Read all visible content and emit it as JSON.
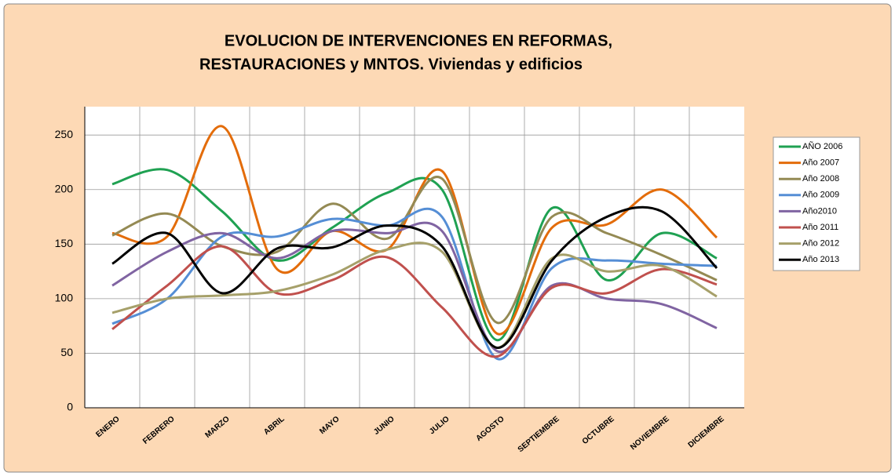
{
  "chart_data": {
    "type": "line",
    "title": [
      "EVOLUCION DE INTERVENCIONES EN REFORMAS,",
      "RESTAURACIONES y MNTOS. Viviendas y edificios"
    ],
    "categories": [
      "ENERO",
      "FEBRERO",
      "MARZO",
      "ABRIL",
      "MAYO",
      "JUNIO",
      "JULIO",
      "AGOSTO",
      "SEPTIEMBRE",
      "OCTUBRE",
      "NOVIEMBRE",
      "DICIEMBRE"
    ],
    "series": [
      {
        "name": "AÑO 2006",
        "color": "#1fa152",
        "values": [
          205,
          218,
          180,
          135,
          165,
          197,
          200,
          62,
          183,
          117,
          160,
          137
        ]
      },
      {
        "name": "Año 2007",
        "color": "#e36c0a",
        "values": [
          160,
          157,
          258,
          127,
          162,
          145,
          217,
          68,
          165,
          168,
          200,
          156
        ]
      },
      {
        "name": "Año 2008",
        "color": "#948a54",
        "values": [
          158,
          178,
          148,
          143,
          187,
          155,
          210,
          78,
          175,
          160,
          140,
          117
        ]
      },
      {
        "name": "Año 2009",
        "color": "#558ed5",
        "values": [
          77,
          100,
          157,
          157,
          173,
          167,
          175,
          45,
          128,
          135,
          132,
          130
        ]
      },
      {
        "name": "Año2010",
        "color": "#8064a2",
        "values": [
          112,
          143,
          160,
          137,
          162,
          160,
          162,
          52,
          112,
          100,
          95,
          73
        ]
      },
      {
        "name": "Año 2011",
        "color": "#c0504d",
        "values": [
          72,
          112,
          148,
          105,
          117,
          138,
          92,
          47,
          110,
          105,
          127,
          113
        ]
      },
      {
        "name": "Año 2012",
        "color": "#a6a06a",
        "values": [
          87,
          100,
          103,
          107,
          122,
          145,
          143,
          55,
          137,
          125,
          130,
          102
        ]
      },
      {
        "name": "Año 2013",
        "color": "#000000",
        "values": [
          132,
          160,
          105,
          146,
          147,
          167,
          148,
          55,
          135,
          175,
          180,
          128
        ]
      }
    ],
    "ylim": [
      0,
      276
    ],
    "yticks": [
      0,
      50,
      100,
      150,
      200,
      250
    ],
    "grid": true,
    "legend": "right"
  }
}
